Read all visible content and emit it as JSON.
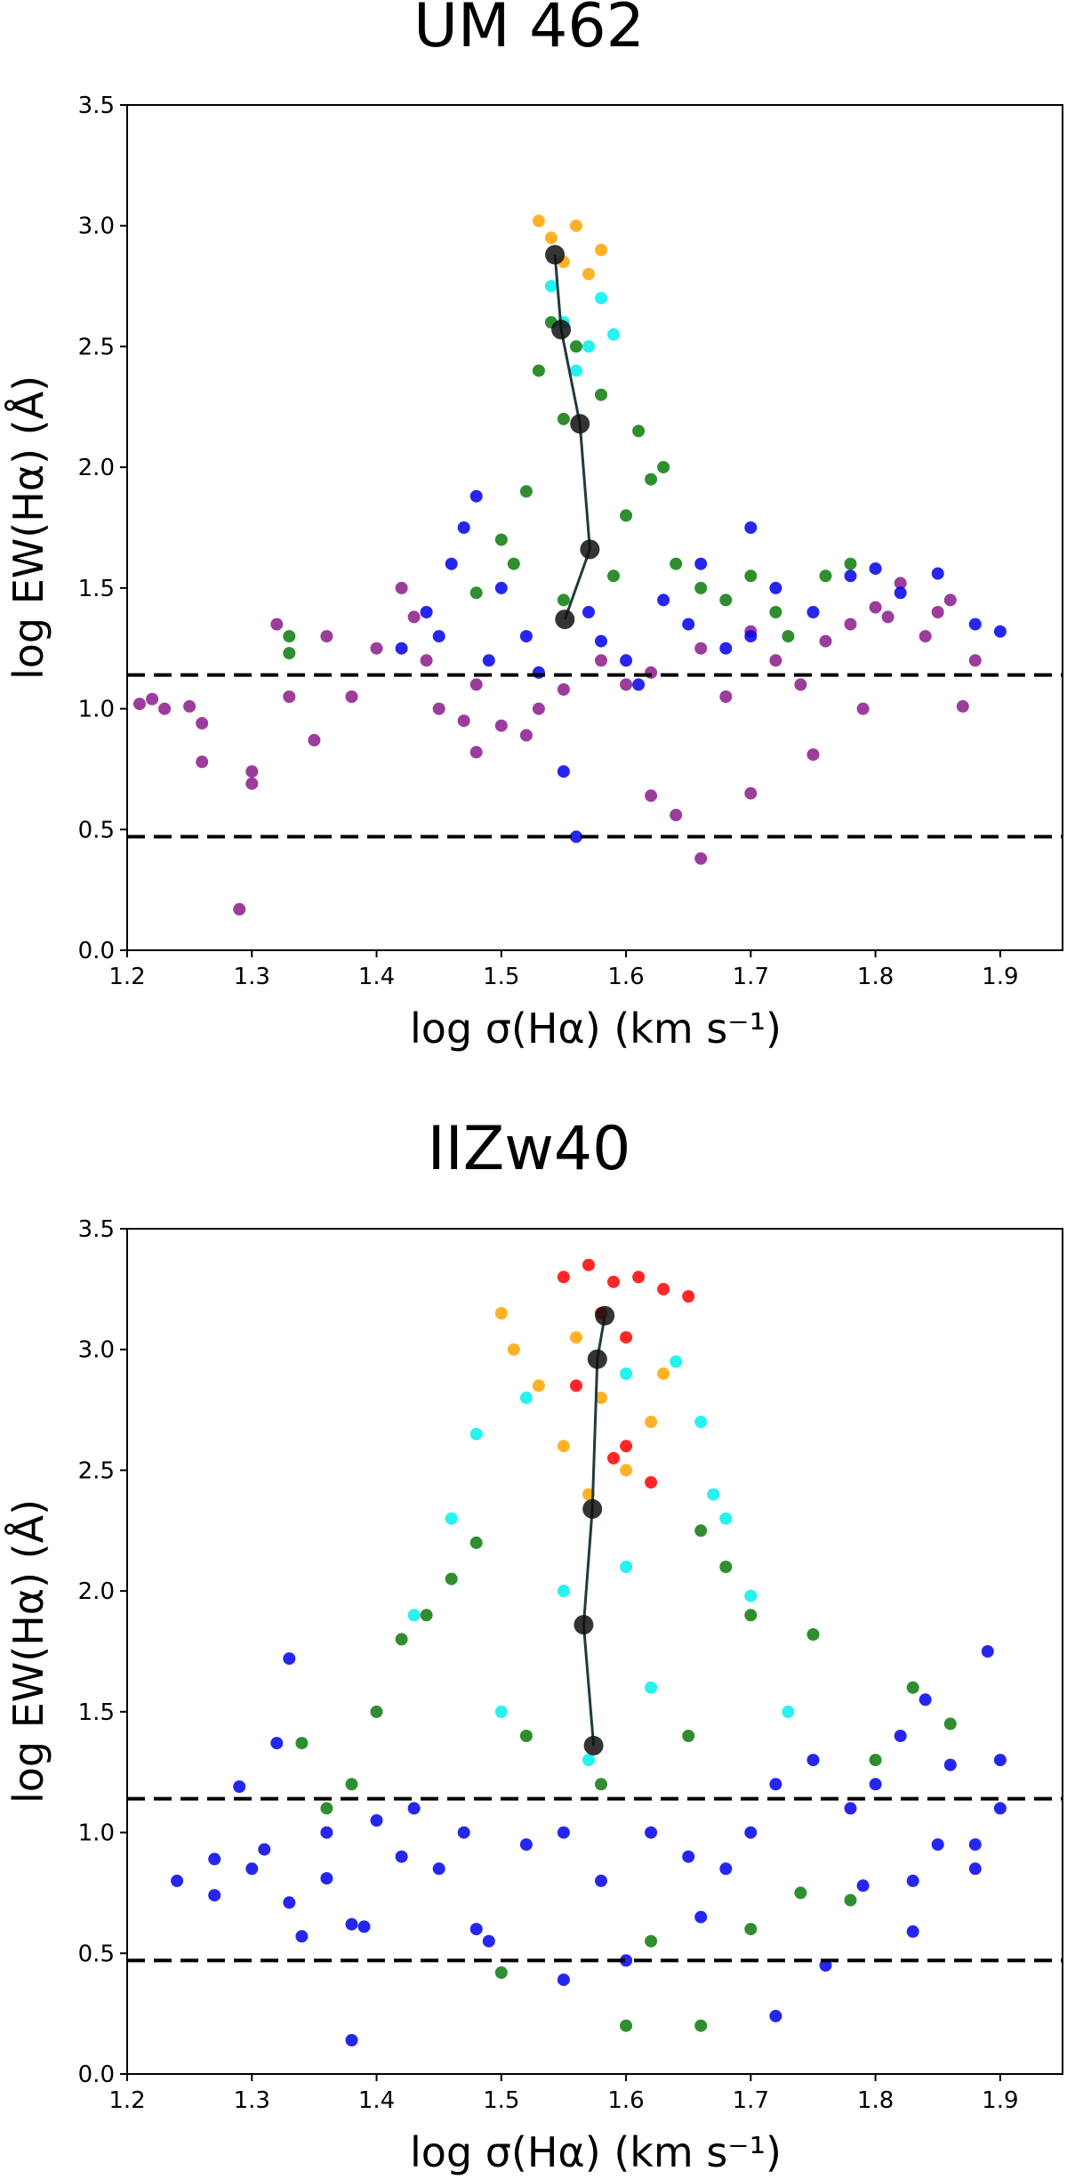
{
  "chart_data": [
    {
      "type": "scatter",
      "title": "UM 462",
      "xlabel": "log σ(Hα) (km s⁻¹)",
      "ylabel": "log EW(Hα) (Å)",
      "xlim": [
        1.2,
        1.95
      ],
      "ylim": [
        0.0,
        3.5
      ],
      "xticks": [
        "1.2",
        "1.3",
        "1.4",
        "1.5",
        "1.6",
        "1.7",
        "1.8",
        "1.9"
      ],
      "yticks": [
        "0.0",
        "0.5",
        "1.0",
        "1.5",
        "2.0",
        "2.5",
        "3.0",
        "3.5"
      ],
      "hlines": [
        1.14,
        0.47
      ],
      "colors": {
        "purple": "#8b1a8b",
        "blue": "#0000ee",
        "green": "#0a7a0a",
        "cyan": "#00f0f0",
        "orange": "#ffa500",
        "red": "#ff0000",
        "black": "#111111"
      },
      "series": [
        {
          "name": "purple",
          "color": "#8b1a8b",
          "points": [
            [
              1.21,
              1.02
            ],
            [
              1.22,
              1.04
            ],
            [
              1.23,
              1.0
            ],
            [
              1.25,
              1.01
            ],
            [
              1.26,
              0.94
            ],
            [
              1.26,
              0.78
            ],
            [
              1.3,
              0.74
            ],
            [
              1.3,
              0.69
            ],
            [
              1.29,
              0.17
            ],
            [
              1.32,
              1.35
            ],
            [
              1.33,
              1.05
            ],
            [
              1.35,
              0.87
            ],
            [
              1.38,
              1.05
            ],
            [
              1.42,
              1.5
            ],
            [
              1.45,
              1.0
            ],
            [
              1.47,
              0.95
            ],
            [
              1.48,
              0.82
            ],
            [
              1.5,
              0.93
            ],
            [
              1.52,
              0.89
            ],
            [
              1.62,
              0.64
            ],
            [
              1.64,
              0.56
            ],
            [
              1.66,
              0.38
            ],
            [
              1.7,
              0.65
            ],
            [
              1.75,
              0.81
            ],
            [
              1.78,
              1.35
            ],
            [
              1.8,
              1.42
            ],
            [
              1.82,
              1.52
            ],
            [
              1.84,
              1.3
            ],
            [
              1.86,
              1.45
            ],
            [
              1.87,
              1.01
            ],
            [
              1.88,
              1.2
            ],
            [
              1.79,
              1.0
            ],
            [
              1.74,
              1.1
            ],
            [
              1.68,
              1.05
            ],
            [
              1.6,
              1.1
            ],
            [
              1.55,
              1.08
            ],
            [
              1.44,
              1.2
            ],
            [
              1.4,
              1.25
            ],
            [
              1.36,
              1.3
            ],
            [
              1.58,
              1.2
            ],
            [
              1.62,
              1.15
            ],
            [
              1.66,
              1.25
            ],
            [
              1.72,
              1.2
            ],
            [
              1.81,
              1.38
            ],
            [
              1.85,
              1.4
            ],
            [
              1.76,
              1.28
            ],
            [
              1.7,
              1.32
            ],
            [
              1.48,
              1.1
            ],
            [
              1.43,
              1.38
            ],
            [
              1.53,
              1.0
            ]
          ]
        },
        {
          "name": "blue",
          "color": "#0000ee",
          "points": [
            [
              1.55,
              0.74
            ],
            [
              1.56,
              0.47
            ],
            [
              1.42,
              1.25
            ],
            [
              1.44,
              1.4
            ],
            [
              1.46,
              1.6
            ],
            [
              1.47,
              1.75
            ],
            [
              1.48,
              1.88
            ],
            [
              1.5,
              1.5
            ],
            [
              1.52,
              1.3
            ],
            [
              1.6,
              1.2
            ],
            [
              1.63,
              1.45
            ],
            [
              1.66,
              1.6
            ],
            [
              1.7,
              1.75
            ],
            [
              1.72,
              1.5
            ],
            [
              1.75,
              1.4
            ],
            [
              1.78,
              1.55
            ],
            [
              1.8,
              1.58
            ],
            [
              1.82,
              1.48
            ],
            [
              1.85,
              1.56
            ],
            [
              1.88,
              1.35
            ],
            [
              1.9,
              1.32
            ],
            [
              1.7,
              1.3
            ],
            [
              1.68,
              1.25
            ],
            [
              1.65,
              1.35
            ],
            [
              1.58,
              1.28
            ],
            [
              1.45,
              1.3
            ],
            [
              1.49,
              1.2
            ],
            [
              1.53,
              1.15
            ],
            [
              1.57,
              1.4
            ],
            [
              1.61,
              1.1
            ]
          ]
        },
        {
          "name": "green",
          "color": "#0a7a0a",
          "points": [
            [
              1.33,
              1.3
            ],
            [
              1.33,
              1.23
            ],
            [
              1.48,
              1.48
            ],
            [
              1.5,
              1.7
            ],
            [
              1.52,
              1.9
            ],
            [
              1.55,
              2.2
            ],
            [
              1.56,
              2.5
            ],
            [
              1.58,
              2.3
            ],
            [
              1.6,
              1.8
            ],
            [
              1.62,
              1.95
            ],
            [
              1.64,
              1.6
            ],
            [
              1.66,
              1.5
            ],
            [
              1.68,
              1.45
            ],
            [
              1.7,
              1.55
            ],
            [
              1.72,
              1.4
            ],
            [
              1.73,
              1.3
            ],
            [
              1.76,
              1.55
            ],
            [
              1.78,
              1.6
            ],
            [
              1.54,
              2.6
            ],
            [
              1.53,
              2.4
            ],
            [
              1.61,
              2.15
            ],
            [
              1.63,
              2.0
            ],
            [
              1.59,
              1.55
            ],
            [
              1.55,
              1.45
            ],
            [
              1.51,
              1.6
            ]
          ]
        },
        {
          "name": "cyan",
          "color": "#00f0f0",
          "points": [
            [
              1.54,
              2.75
            ],
            [
              1.55,
              2.6
            ],
            [
              1.57,
              2.5
            ],
            [
              1.58,
              2.7
            ],
            [
              1.59,
              2.55
            ],
            [
              1.56,
              2.4
            ]
          ]
        },
        {
          "name": "orange",
          "color": "#ffa500",
          "points": [
            [
              1.53,
              3.02
            ],
            [
              1.54,
              2.95
            ],
            [
              1.56,
              3.0
            ],
            [
              1.55,
              2.85
            ],
            [
              1.57,
              2.8
            ],
            [
              1.58,
              2.9
            ]
          ]
        }
      ],
      "medians": [
        [
          1.543,
          2.88
        ],
        [
          1.548,
          2.57
        ],
        [
          1.563,
          2.18
        ],
        [
          1.571,
          1.66
        ],
        [
          1.551,
          1.37
        ]
      ]
    },
    {
      "type": "scatter",
      "title": "IIZw40",
      "xlabel": "log σ(Hα) (km s⁻¹)",
      "ylabel": "log EW(Hα) (Å)",
      "xlim": [
        1.2,
        1.95
      ],
      "ylim": [
        0.0,
        3.5
      ],
      "xticks": [
        "1.2",
        "1.3",
        "1.4",
        "1.5",
        "1.6",
        "1.7",
        "1.8",
        "1.9"
      ],
      "yticks": [
        "0.0",
        "0.5",
        "1.0",
        "1.5",
        "2.0",
        "2.5",
        "3.0",
        "3.5"
      ],
      "hlines": [
        1.14,
        0.47
      ],
      "series": [
        {
          "name": "blue",
          "color": "#0000ee",
          "points": [
            [
              1.24,
              0.8
            ],
            [
              1.27,
              0.74
            ],
            [
              1.27,
              0.89
            ],
            [
              1.29,
              1.19
            ],
            [
              1.3,
              0.85
            ],
            [
              1.31,
              0.93
            ],
            [
              1.32,
              1.37
            ],
            [
              1.33,
              1.72
            ],
            [
              1.33,
              0.71
            ],
            [
              1.34,
              0.57
            ],
            [
              1.36,
              0.81
            ],
            [
              1.38,
              0.14
            ],
            [
              1.38,
              0.62
            ],
            [
              1.39,
              0.61
            ],
            [
              1.4,
              1.05
            ],
            [
              1.42,
              0.9
            ],
            [
              1.45,
              0.85
            ],
            [
              1.48,
              0.6
            ],
            [
              1.49,
              0.55
            ],
            [
              1.55,
              0.39
            ],
            [
              1.6,
              0.47
            ],
            [
              1.72,
              0.24
            ],
            [
              1.76,
              0.45
            ],
            [
              1.83,
              0.59
            ],
            [
              1.85,
              0.95
            ],
            [
              1.88,
              0.95
            ],
            [
              1.89,
              1.75
            ],
            [
              1.9,
              1.3
            ],
            [
              1.9,
              1.1
            ],
            [
              1.86,
              1.28
            ],
            [
              1.84,
              1.55
            ],
            [
              1.82,
              1.4
            ],
            [
              1.8,
              1.2
            ],
            [
              1.78,
              1.1
            ],
            [
              1.75,
              1.3
            ],
            [
              1.72,
              1.2
            ],
            [
              1.7,
              1.0
            ],
            [
              1.68,
              0.85
            ],
            [
              1.65,
              0.9
            ],
            [
              1.62,
              1.0
            ],
            [
              1.58,
              0.8
            ],
            [
              1.55,
              1.0
            ],
            [
              1.52,
              0.95
            ],
            [
              1.47,
              1.0
            ],
            [
              1.43,
              1.1
            ],
            [
              1.36,
              1.0
            ],
            [
              1.88,
              0.85
            ],
            [
              1.83,
              0.8
            ],
            [
              1.79,
              0.78
            ],
            [
              1.66,
              0.65
            ]
          ]
        },
        {
          "name": "green",
          "color": "#0a7a0a",
          "points": [
            [
              1.34,
              1.37
            ],
            [
              1.36,
              1.1
            ],
            [
              1.38,
              1.2
            ],
            [
              1.4,
              1.5
            ],
            [
              1.42,
              1.8
            ],
            [
              1.44,
              1.9
            ],
            [
              1.5,
              0.42
            ],
            [
              1.6,
              0.2
            ],
            [
              1.66,
              0.2
            ],
            [
              1.62,
              0.55
            ],
            [
              1.7,
              0.6
            ],
            [
              1.74,
              0.75
            ],
            [
              1.78,
              0.72
            ],
            [
              1.8,
              1.3
            ],
            [
              1.83,
              1.6
            ],
            [
              1.86,
              1.45
            ],
            [
              1.75,
              1.82
            ],
            [
              1.7,
              1.9
            ],
            [
              1.68,
              2.1
            ],
            [
              1.66,
              2.25
            ],
            [
              1.48,
              2.2
            ],
            [
              1.46,
              2.05
            ],
            [
              1.65,
              1.4
            ],
            [
              1.58,
              1.2
            ],
            [
              1.52,
              1.4
            ]
          ]
        },
        {
          "name": "cyan",
          "color": "#00f0f0",
          "points": [
            [
              1.43,
              1.9
            ],
            [
              1.46,
              2.3
            ],
            [
              1.48,
              2.65
            ],
            [
              1.52,
              2.8
            ],
            [
              1.6,
              2.9
            ],
            [
              1.64,
              2.95
            ],
            [
              1.66,
              2.7
            ],
            [
              1.67,
              2.4
            ],
            [
              1.68,
              2.3
            ],
            [
              1.7,
              1.98
            ],
            [
              1.73,
              1.5
            ],
            [
              1.57,
              1.3
            ],
            [
              1.5,
              1.5
            ],
            [
              1.55,
              2.0
            ],
            [
              1.6,
              2.1
            ],
            [
              1.62,
              1.6
            ]
          ]
        },
        {
          "name": "orange",
          "color": "#ffa500",
          "points": [
            [
              1.5,
              3.15
            ],
            [
              1.51,
              3.0
            ],
            [
              1.53,
              2.85
            ],
            [
              1.55,
              2.6
            ],
            [
              1.57,
              2.4
            ],
            [
              1.6,
              2.5
            ],
            [
              1.62,
              2.7
            ],
            [
              1.63,
              2.9
            ],
            [
              1.56,
              3.05
            ],
            [
              1.58,
              2.8
            ]
          ]
        },
        {
          "name": "red",
          "color": "#ff0000",
          "points": [
            [
              1.55,
              3.3
            ],
            [
              1.57,
              3.35
            ],
            [
              1.59,
              3.28
            ],
            [
              1.61,
              3.3
            ],
            [
              1.63,
              3.25
            ],
            [
              1.65,
              3.22
            ],
            [
              1.58,
              3.15
            ],
            [
              1.6,
              3.05
            ],
            [
              1.56,
              2.85
            ],
            [
              1.6,
              2.6
            ],
            [
              1.62,
              2.45
            ],
            [
              1.59,
              2.55
            ]
          ]
        }
      ],
      "medians": [
        [
          1.583,
          3.14
        ],
        [
          1.577,
          2.96
        ],
        [
          1.573,
          2.34
        ],
        [
          1.566,
          1.86
        ],
        [
          1.574,
          1.36
        ]
      ]
    }
  ]
}
